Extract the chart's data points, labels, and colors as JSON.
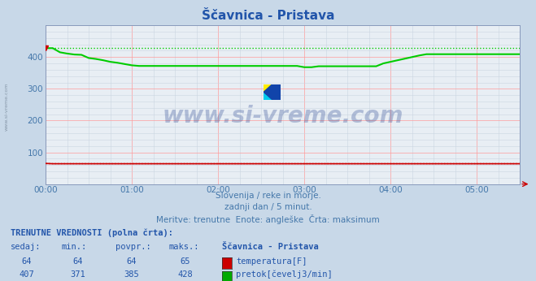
{
  "title": "Ščavnica - Pristava",
  "bg_color": "#c8d8e8",
  "plot_bg_color": "#e8eef4",
  "title_color": "#2255aa",
  "grid_major_color": "#ff9999",
  "grid_minor_color": "#c8d4e0",
  "tick_color": "#4477aa",
  "subtitle_lines": [
    "Slovenija / reke in morje.",
    "zadnji dan / 5 minut.",
    "Meritve: trenutne  Enote: angleške  Črta: maksimum"
  ],
  "subtitle_color": "#4477aa",
  "table_header": "TRENUTNE VREDNOSTI (polna črta):",
  "table_col_headers": [
    "sedaj:",
    "min.:",
    "povpr.:",
    "maks.:",
    "Ščavnica - Pristava"
  ],
  "row1_vals": [
    "64",
    "64",
    "64",
    "65"
  ],
  "row1_label": "temperatura[F]",
  "row1_color": "#cc0000",
  "row2_vals": [
    "407",
    "371",
    "385",
    "428"
  ],
  "row2_label": "pretok[čevelj3/min]",
  "row2_color": "#00aa00",
  "flow_color": "#00cc00",
  "temp_color": "#cc0000",
  "flow_max": 428,
  "temp_max": 65,
  "temp_val": 64,
  "watermark": "www.si-vreme.com",
  "watermark_color": "#1a3a8a",
  "left_label": "www.si-vreme.com",
  "left_label_color": "#8899aa",
  "ylim": [
    0,
    500
  ],
  "ytick_major": [
    100,
    200,
    300,
    400
  ],
  "n_hours_visible": 5.5,
  "arrow_color": "#cc0000"
}
